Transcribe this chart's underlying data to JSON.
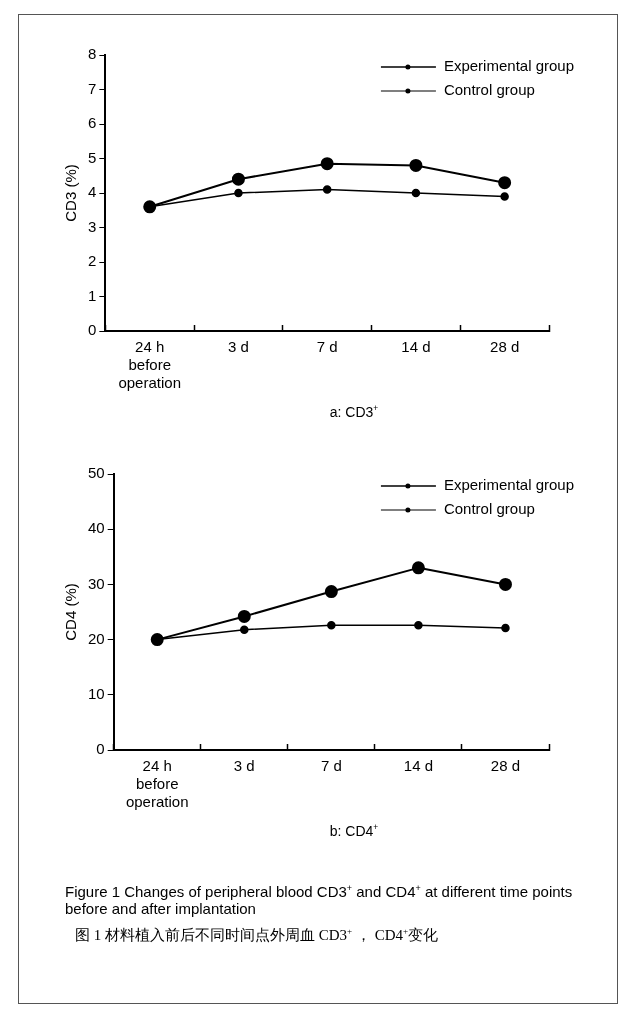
{
  "chart_data": [
    {
      "type": "line",
      "title": "a: CD3$^{+}$",
      "ylabel": "CD3 (%)",
      "categories": [
        "24 h before operation",
        "3 d",
        "7 d",
        "14 d",
        "28 d"
      ],
      "series": [
        {
          "name": "Experimental group",
          "color": "#000000",
          "values": [
            3.6,
            4.4,
            4.85,
            4.8,
            4.3
          ]
        },
        {
          "name": "Control group",
          "color": "#000000",
          "values": [
            3.6,
            4.0,
            4.1,
            4.0,
            3.9
          ]
        }
      ],
      "ylim": [
        0,
        8
      ],
      "yticks": [
        0,
        1,
        2,
        3,
        4,
        5,
        6,
        7,
        8
      ],
      "grid": false,
      "legend": "top right",
      "marker": "circle",
      "line_style": "solid"
    },
    {
      "type": "line",
      "title": "b: CD4$^{+}$",
      "ylabel": "CD4 (%)",
      "categories": [
        "24 h before operation",
        "3 d",
        "7 d",
        "14 d",
        "28 d"
      ],
      "series": [
        {
          "name": "Experimental group",
          "color": "#000000",
          "values": [
            20,
            24.2,
            28.7,
            33,
            30
          ]
        },
        {
          "name": "Control group",
          "color": "#000000",
          "values": [
            20,
            21.8,
            22.6,
            22.6,
            22.1
          ]
        }
      ],
      "ylim": [
        0,
        50
      ],
      "yticks": [
        0,
        10,
        20,
        30,
        40,
        50
      ],
      "grid": false,
      "legend": "top right",
      "marker": "circle",
      "line_style": "solid",
      "annotations": [
        "Figure 1    Changes of peripheral blood CD3$^{+}$ and CD4$^{+}$ at different time points before and after implantation",
        "图 1   材料植入前后不同时间点外周血 CD3$^{+}$ ， CD4$^{+}$变化"
      ]
    }
  ]
}
